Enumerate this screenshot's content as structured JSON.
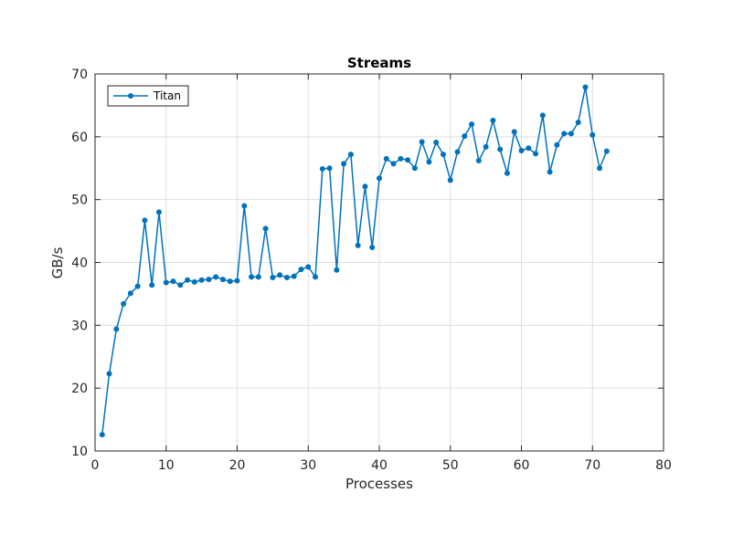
{
  "chart_data": {
    "type": "line",
    "title": "Streams",
    "xlabel": "Processes",
    "ylabel": "GB/s",
    "xlim": [
      0,
      80
    ],
    "ylim": [
      10,
      70
    ],
    "xticks": [
      0,
      10,
      20,
      30,
      40,
      50,
      60,
      70,
      80
    ],
    "yticks": [
      10,
      20,
      30,
      40,
      50,
      60,
      70
    ],
    "grid": true,
    "legend_position": "top-left",
    "series": [
      {
        "name": "Titan",
        "color": "#0072bd",
        "marker": "circle",
        "x": [
          1,
          2,
          3,
          4,
          5,
          6,
          7,
          8,
          9,
          10,
          11,
          12,
          13,
          14,
          15,
          16,
          17,
          18,
          19,
          20,
          21,
          22,
          23,
          24,
          25,
          26,
          27,
          28,
          29,
          30,
          31,
          32,
          33,
          34,
          35,
          36,
          37,
          38,
          39,
          40,
          41,
          42,
          43,
          44,
          45,
          46,
          47,
          48,
          49,
          50,
          51,
          52,
          53,
          54,
          55,
          56,
          57,
          58,
          59,
          60,
          61,
          62,
          63,
          64,
          65,
          66,
          67,
          68,
          69,
          70,
          71,
          72
        ],
        "values": [
          12.6,
          22.3,
          29.4,
          33.4,
          35.1,
          36.2,
          46.7,
          36.4,
          48.0,
          36.8,
          37.0,
          36.4,
          37.2,
          36.9,
          37.2,
          37.3,
          37.7,
          37.3,
          37.0,
          37.1,
          49.0,
          37.7,
          37.7,
          45.4,
          37.6,
          38.0,
          37.6,
          37.8,
          38.9,
          39.3,
          37.7,
          54.9,
          55.0,
          38.8,
          55.7,
          57.2,
          42.7,
          52.1,
          42.4,
          53.4,
          56.5,
          55.7,
          56.5,
          56.3,
          55.0,
          59.2,
          56.0,
          59.1,
          57.2,
          53.1,
          57.6,
          60.1,
          62.0,
          56.2,
          58.4,
          62.6,
          58.0,
          54.2,
          60.8,
          57.8,
          58.2,
          57.3,
          63.4,
          54.4,
          58.7,
          60.5,
          60.5,
          62.3,
          67.9,
          60.3,
          55.0,
          57.7
        ]
      }
    ]
  }
}
